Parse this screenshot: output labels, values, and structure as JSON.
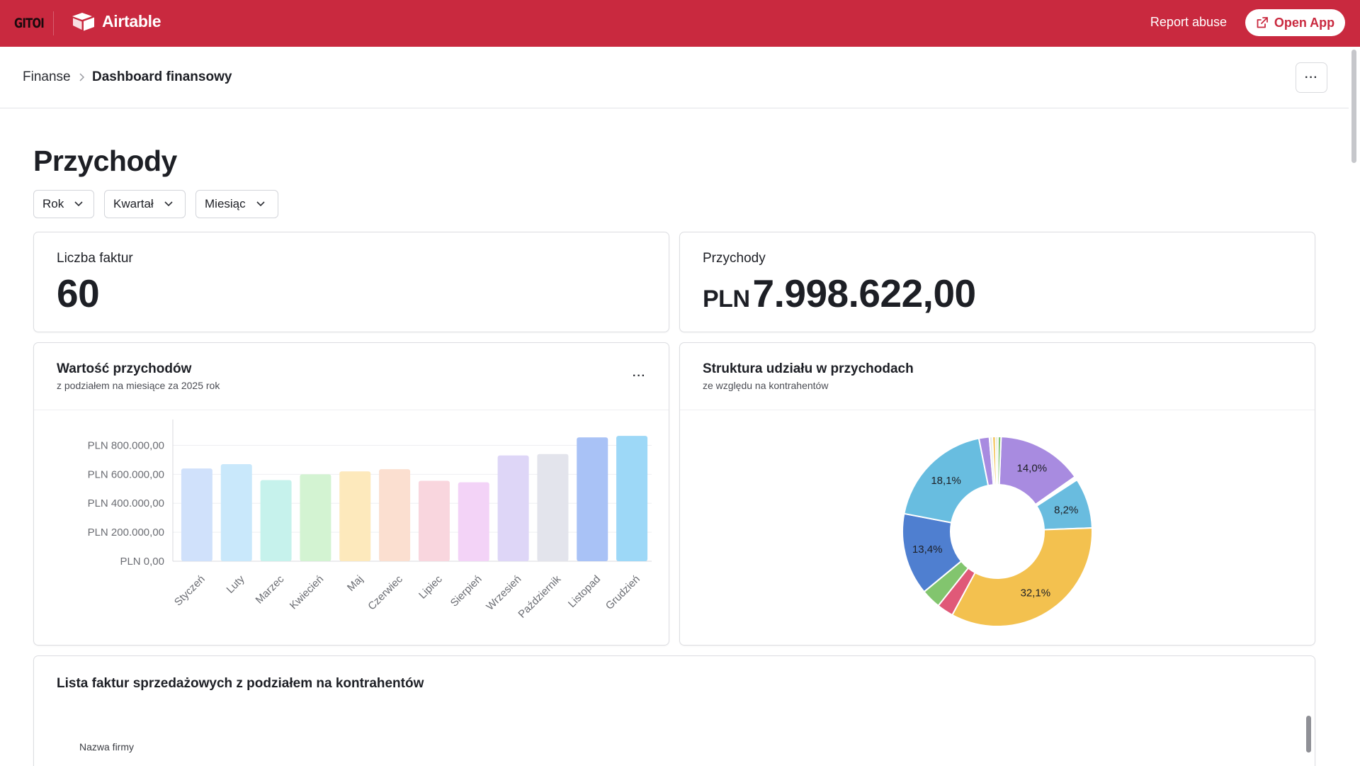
{
  "topbar": {
    "brand_left": "GITOI",
    "app_name": "Airtable",
    "report_abuse": "Report abuse",
    "open_app": "Open App",
    "background_color": "#c9293f"
  },
  "breadcrumb": {
    "parent": "Finanse",
    "current": "Dashboard finansowy",
    "more_label": "···"
  },
  "page": {
    "title": "Przychody"
  },
  "filters": [
    {
      "label": "Rok"
    },
    {
      "label": "Kwartał"
    },
    {
      "label": "Miesiąc"
    }
  ],
  "kpis": {
    "invoice_count": {
      "label": "Liczba faktur",
      "value": "60"
    },
    "revenue": {
      "label": "Przychody",
      "currency": "PLN",
      "value": "7.998.622,00"
    }
  },
  "revenue_chart_card": {
    "title": "Wartość przychodów",
    "subtitle": "z podziałem na miesiące za 2025 rok",
    "more_label": "···"
  },
  "share_chart_card": {
    "title": "Struktura udziału w przychodach",
    "subtitle": "ze względu na kontrahentów"
  },
  "invoice_list": {
    "title": "Lista faktur sprzedażowych z podziałem na kontrahentów",
    "column_header": "Nazwa firmy"
  },
  "chart_data": [
    {
      "type": "bar",
      "categories": [
        "Styczeń",
        "Luty",
        "Marzec",
        "Kwiecień",
        "Maj",
        "Czerwiec",
        "Lipiec",
        "Sierpień",
        "Wrzesień",
        "Październik",
        "Listopad",
        "Grudzień"
      ],
      "values": [
        640000,
        670000,
        560000,
        600000,
        620000,
        635000,
        555000,
        545000,
        730000,
        740000,
        855000,
        865000
      ],
      "yticks": [
        "PLN 0,00",
        "PLN 200.000,00",
        "PLN 400.000,00",
        "PLN 600.000,00",
        "PLN 800.000,00"
      ],
      "ylim": [
        0,
        900000
      ],
      "colors": [
        "#d0e1fb",
        "#c9e8fb",
        "#c6f2ec",
        "#d3f3d2",
        "#fde9bc",
        "#fbdfd0",
        "#f9d6de",
        "#f3d3f7",
        "#ded6f7",
        "#e3e4ec",
        "#a9c2f6",
        "#9dd8f7"
      ],
      "grid": true
    },
    {
      "type": "pie",
      "donut": true,
      "slices": [
        {
          "value": 14.0,
          "label": "14,0%",
          "color": "#a88be0"
        },
        {
          "value": 0.6,
          "label": "",
          "color": "#ffffff"
        },
        {
          "value": 8.2,
          "label": "8,2%",
          "color": "#69bcdf"
        },
        {
          "value": 32.1,
          "label": "32,1%",
          "color": "#f3c14f"
        },
        {
          "value": 2.7,
          "label": "",
          "color": "#e05978"
        },
        {
          "value": 3.2,
          "label": "",
          "color": "#82c56e"
        },
        {
          "value": 13.4,
          "label": "13,4%",
          "color": "#4f7fd0"
        },
        {
          "value": 18.1,
          "label": "18,1%",
          "color": "#68bde0"
        },
        {
          "value": 1.7,
          "label": "",
          "color": "#a88be0"
        },
        {
          "value": 0.5,
          "label": "",
          "color": "#e7e8ea"
        },
        {
          "value": 0.5,
          "label": "",
          "color": "#f3c14f"
        },
        {
          "value": 0.4,
          "label": "",
          "color": "#dfe6d5"
        },
        {
          "value": 0.5,
          "label": "",
          "color": "#82c56e"
        }
      ]
    }
  ]
}
